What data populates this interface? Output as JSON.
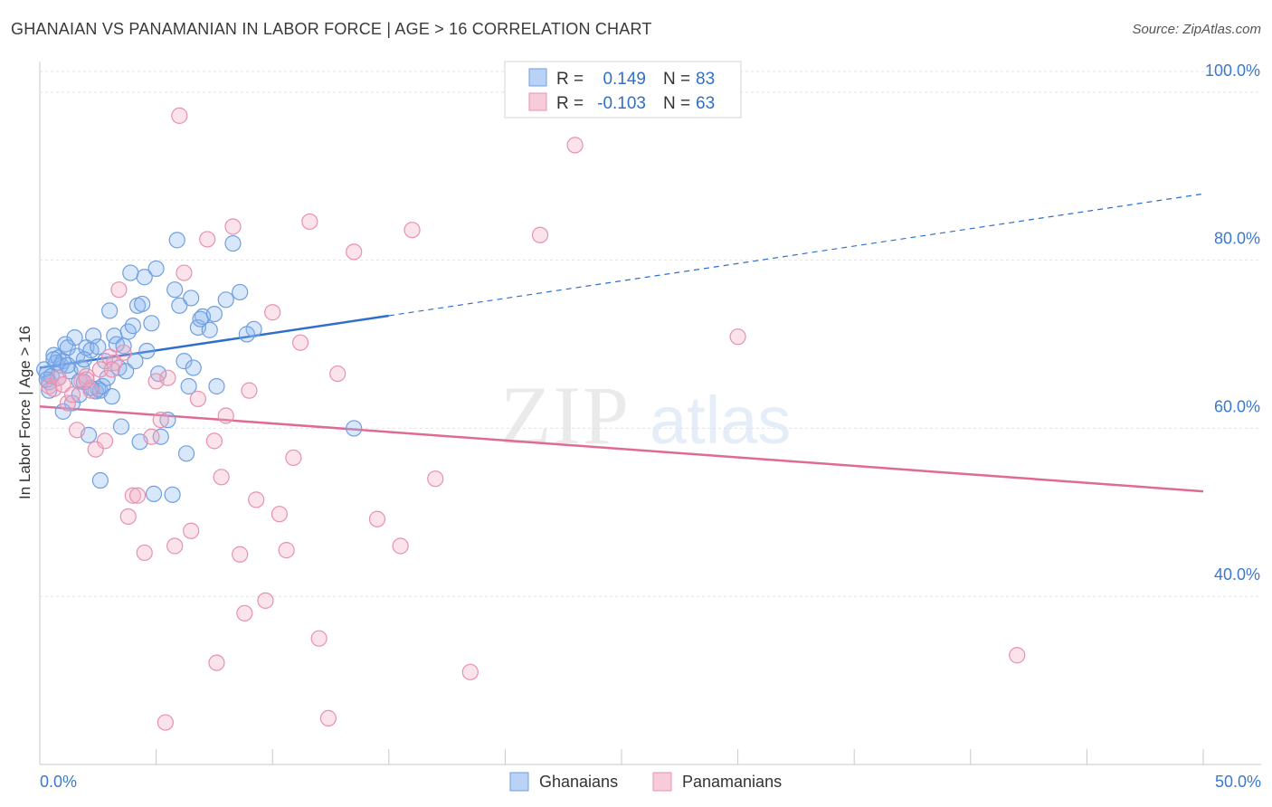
{
  "title": "GHANAIAN VS PANAMANIAN IN LABOR FORCE | AGE > 16 CORRELATION CHART",
  "source": "Source: ZipAtlas.com",
  "legend": {
    "rows": [
      {
        "r_label": "R =",
        "r_value": "0.149",
        "n_label": "N =",
        "n_value": "83",
        "color": "#8ab4ee"
      },
      {
        "r_label": "R =",
        "r_value": "-0.103",
        "n_label": "N =",
        "n_value": "63",
        "color": "#f4a8c0"
      }
    ]
  },
  "bottom_legend": [
    "Ghanaians",
    "Panamanians"
  ],
  "colors": {
    "blue": "#2f6fcc",
    "blue_fill": "#8ab4ee",
    "pink": "#e06a96",
    "pink_fill": "#f4a8c0"
  },
  "chart_data": {
    "type": "scatter",
    "xlabel": "",
    "ylabel": "In Labor Force | Age > 16",
    "xlim": [
      0,
      50
    ],
    "ylim": [
      20,
      103
    ],
    "x_tick_labels": [
      "0.0%",
      "50.0%"
    ],
    "y_ticks": [
      40,
      60,
      80,
      100
    ],
    "y_tick_labels": [
      "40.0%",
      "60.0%",
      "80.0%",
      "100.0%"
    ],
    "grid": true,
    "series": [
      {
        "name": "Ghanaians",
        "trend": {
          "x0": 0,
          "y0": 67.2,
          "x1": 15,
          "y1": 73.4,
          "x_end": 50,
          "y_end": 87.9
        },
        "points": [
          [
            0.2,
            67.0
          ],
          [
            0.3,
            66.5
          ],
          [
            0.4,
            65.5
          ],
          [
            0.5,
            66.2
          ],
          [
            0.6,
            68.7
          ],
          [
            0.7,
            67.8
          ],
          [
            0.8,
            68.4
          ],
          [
            0.9,
            67.5
          ],
          [
            1.0,
            68.0
          ],
          [
            1.1,
            70.0
          ],
          [
            1.2,
            69.6
          ],
          [
            1.3,
            66.8
          ],
          [
            1.4,
            63.0
          ],
          [
            1.5,
            70.8
          ],
          [
            1.6,
            68.6
          ],
          [
            1.7,
            65.6
          ],
          [
            1.8,
            67.2
          ],
          [
            1.9,
            65.5
          ],
          [
            2.0,
            69.6
          ],
          [
            2.2,
            69.3
          ],
          [
            2.3,
            71.0
          ],
          [
            2.4,
            64.4
          ],
          [
            2.5,
            64.7
          ],
          [
            2.6,
            64.5
          ],
          [
            2.7,
            65.0
          ],
          [
            2.8,
            68.0
          ],
          [
            3.0,
            74.0
          ],
          [
            3.2,
            71.0
          ],
          [
            3.3,
            70.0
          ],
          [
            3.4,
            67.2
          ],
          [
            3.5,
            60.2
          ],
          [
            3.6,
            69.8
          ],
          [
            3.8,
            71.5
          ],
          [
            4.0,
            72.2
          ],
          [
            4.2,
            74.6
          ],
          [
            4.4,
            74.8
          ],
          [
            4.6,
            69.2
          ],
          [
            4.8,
            72.5
          ],
          [
            5.0,
            79.0
          ],
          [
            5.2,
            59.0
          ],
          [
            5.5,
            61.0
          ],
          [
            5.8,
            76.5
          ],
          [
            6.0,
            74.6
          ],
          [
            6.2,
            68.0
          ],
          [
            6.5,
            75.5
          ],
          [
            6.8,
            72.0
          ],
          [
            7.0,
            73.3
          ],
          [
            7.3,
            71.7
          ],
          [
            7.6,
            65.0
          ],
          [
            8.0,
            75.3
          ],
          [
            8.3,
            82.0
          ],
          [
            8.6,
            76.2
          ],
          [
            4.5,
            78.0
          ],
          [
            3.9,
            78.5
          ],
          [
            2.1,
            59.2
          ],
          [
            1.0,
            62.0
          ],
          [
            0.4,
            64.5
          ],
          [
            0.8,
            66.0
          ],
          [
            2.6,
            53.8
          ],
          [
            4.3,
            58.4
          ],
          [
            5.7,
            52.1
          ],
          [
            6.3,
            57.0
          ],
          [
            6.6,
            67.2
          ],
          [
            9.2,
            71.8
          ],
          [
            13.5,
            60.0
          ],
          [
            5.9,
            82.4
          ],
          [
            4.1,
            68.0
          ],
          [
            3.7,
            66.8
          ],
          [
            1.7,
            64.0
          ],
          [
            2.9,
            66.0
          ],
          [
            6.9,
            73.0
          ],
          [
            7.5,
            73.6
          ],
          [
            5.1,
            66.5
          ],
          [
            0.6,
            68.2
          ],
          [
            1.2,
            67.5
          ],
          [
            2.2,
            64.8
          ],
          [
            3.1,
            63.8
          ],
          [
            4.9,
            52.2
          ],
          [
            6.4,
            65.0
          ],
          [
            2.5,
            69.7
          ],
          [
            1.9,
            68.2
          ],
          [
            0.3,
            65.8
          ],
          [
            8.9,
            71.2
          ]
        ]
      },
      {
        "name": "Panamanians",
        "trend": {
          "x0": 0,
          "y0": 62.6,
          "x_end": 50,
          "y_end": 52.5
        },
        "points": [
          [
            0.4,
            65.0
          ],
          [
            0.6,
            64.7
          ],
          [
            0.8,
            66.0
          ],
          [
            1.0,
            65.2
          ],
          [
            1.2,
            63.0
          ],
          [
            1.4,
            64.0
          ],
          [
            1.6,
            59.8
          ],
          [
            1.8,
            65.6
          ],
          [
            2.0,
            66.2
          ],
          [
            2.2,
            64.5
          ],
          [
            2.4,
            57.5
          ],
          [
            2.6,
            67.0
          ],
          [
            2.8,
            58.5
          ],
          [
            3.0,
            68.5
          ],
          [
            3.2,
            67.8
          ],
          [
            3.4,
            76.5
          ],
          [
            3.6,
            69.0
          ],
          [
            3.8,
            49.5
          ],
          [
            4.0,
            52.0
          ],
          [
            4.2,
            52.0
          ],
          [
            4.5,
            45.2
          ],
          [
            4.8,
            59.0
          ],
          [
            5.0,
            65.6
          ],
          [
            5.2,
            61.0
          ],
          [
            5.5,
            66.0
          ],
          [
            5.8,
            46.0
          ],
          [
            6.0,
            97.2
          ],
          [
            6.2,
            78.5
          ],
          [
            6.5,
            47.8
          ],
          [
            6.8,
            63.5
          ],
          [
            7.2,
            82.5
          ],
          [
            7.5,
            58.5
          ],
          [
            7.8,
            54.2
          ],
          [
            8.0,
            61.5
          ],
          [
            8.3,
            84.0
          ],
          [
            8.6,
            45.0
          ],
          [
            8.8,
            38.0
          ],
          [
            9.0,
            64.5
          ],
          [
            9.3,
            51.5
          ],
          [
            9.7,
            39.5
          ],
          [
            10.0,
            73.8
          ],
          [
            10.3,
            49.8
          ],
          [
            10.6,
            45.5
          ],
          [
            10.9,
            56.5
          ],
          [
            11.2,
            70.2
          ],
          [
            11.6,
            84.6
          ],
          [
            12.0,
            35.0
          ],
          [
            12.4,
            25.5
          ],
          [
            12.8,
            66.5
          ],
          [
            13.5,
            81.0
          ],
          [
            14.5,
            49.2
          ],
          [
            15.5,
            46.0
          ],
          [
            16.0,
            83.6
          ],
          [
            17.0,
            54.0
          ],
          [
            18.5,
            31.0
          ],
          [
            21.5,
            83.0
          ],
          [
            23.0,
            93.7
          ],
          [
            30.0,
            70.9
          ],
          [
            42.0,
            33.0
          ],
          [
            7.6,
            32.1
          ],
          [
            5.4,
            25.0
          ],
          [
            3.1,
            67.0
          ],
          [
            2.0,
            65.8
          ]
        ]
      }
    ]
  }
}
